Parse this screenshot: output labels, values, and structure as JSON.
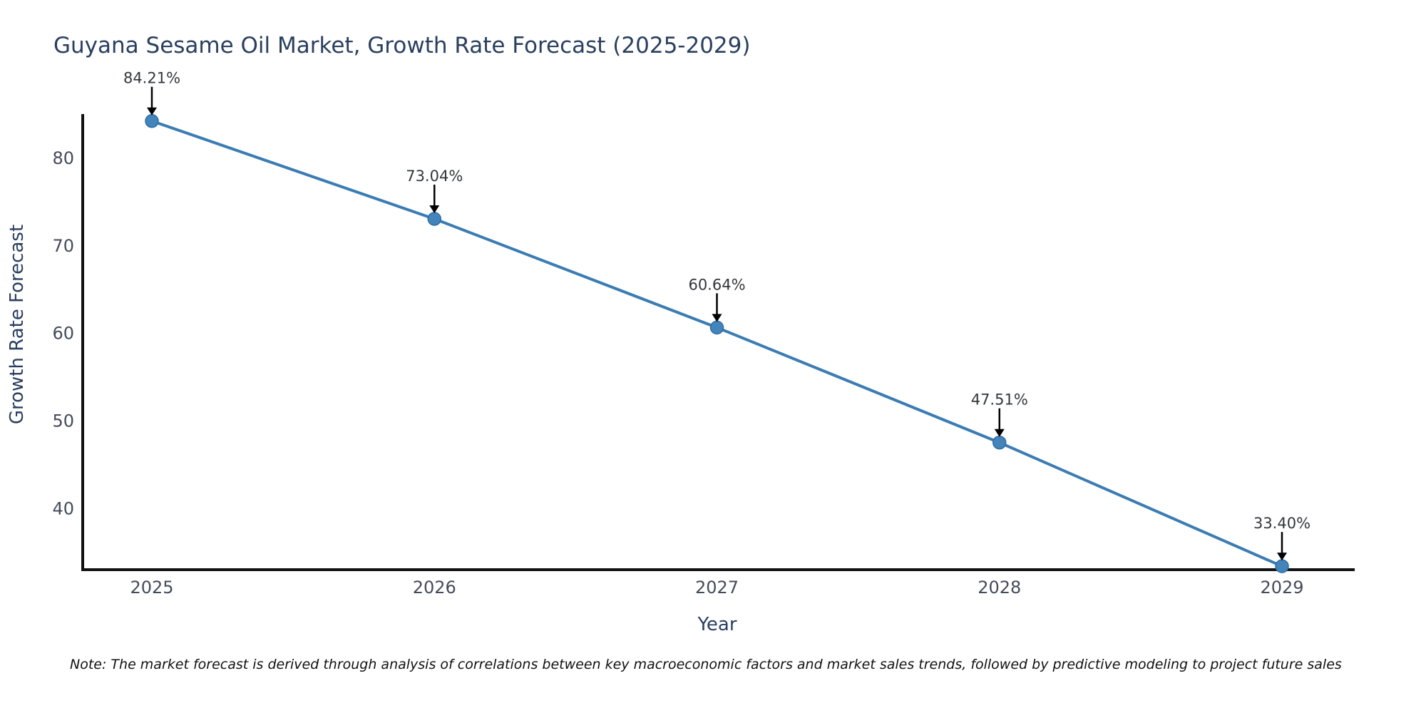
{
  "note": "Note: The market forecast is derived through analysis of correlations between key macroeconomic factors and market sales trends, followed by predictive modeling to project future sales",
  "chart_data": {
    "type": "line",
    "title": "Guyana Sesame Oil Market, Growth Rate Forecast (2025-2029)",
    "xlabel": "Year",
    "ylabel": "Growth Rate Forecast",
    "x": [
      "2025",
      "2026",
      "2027",
      "2028",
      "2029"
    ],
    "series": [
      {
        "name": "Growth Rate Forecast",
        "values": [
          84.21,
          73.04,
          60.64,
          47.51,
          33.4
        ],
        "point_labels": [
          "84.21%",
          "73.04%",
          "60.64%",
          "47.51%",
          "33.40%"
        ]
      }
    ],
    "yticks": [
      40,
      50,
      60,
      70,
      80
    ],
    "ylim": [
      33,
      85
    ],
    "grid": false,
    "legend": false,
    "colors": {
      "line": "#3b7cb3",
      "marker_fill": "#4385bb",
      "marker_edge": "#2e6da4",
      "axis": "#111111",
      "tick_text": "#444b5a",
      "annotation_text": "#33373d",
      "annotation_arrow": "#000000"
    }
  }
}
